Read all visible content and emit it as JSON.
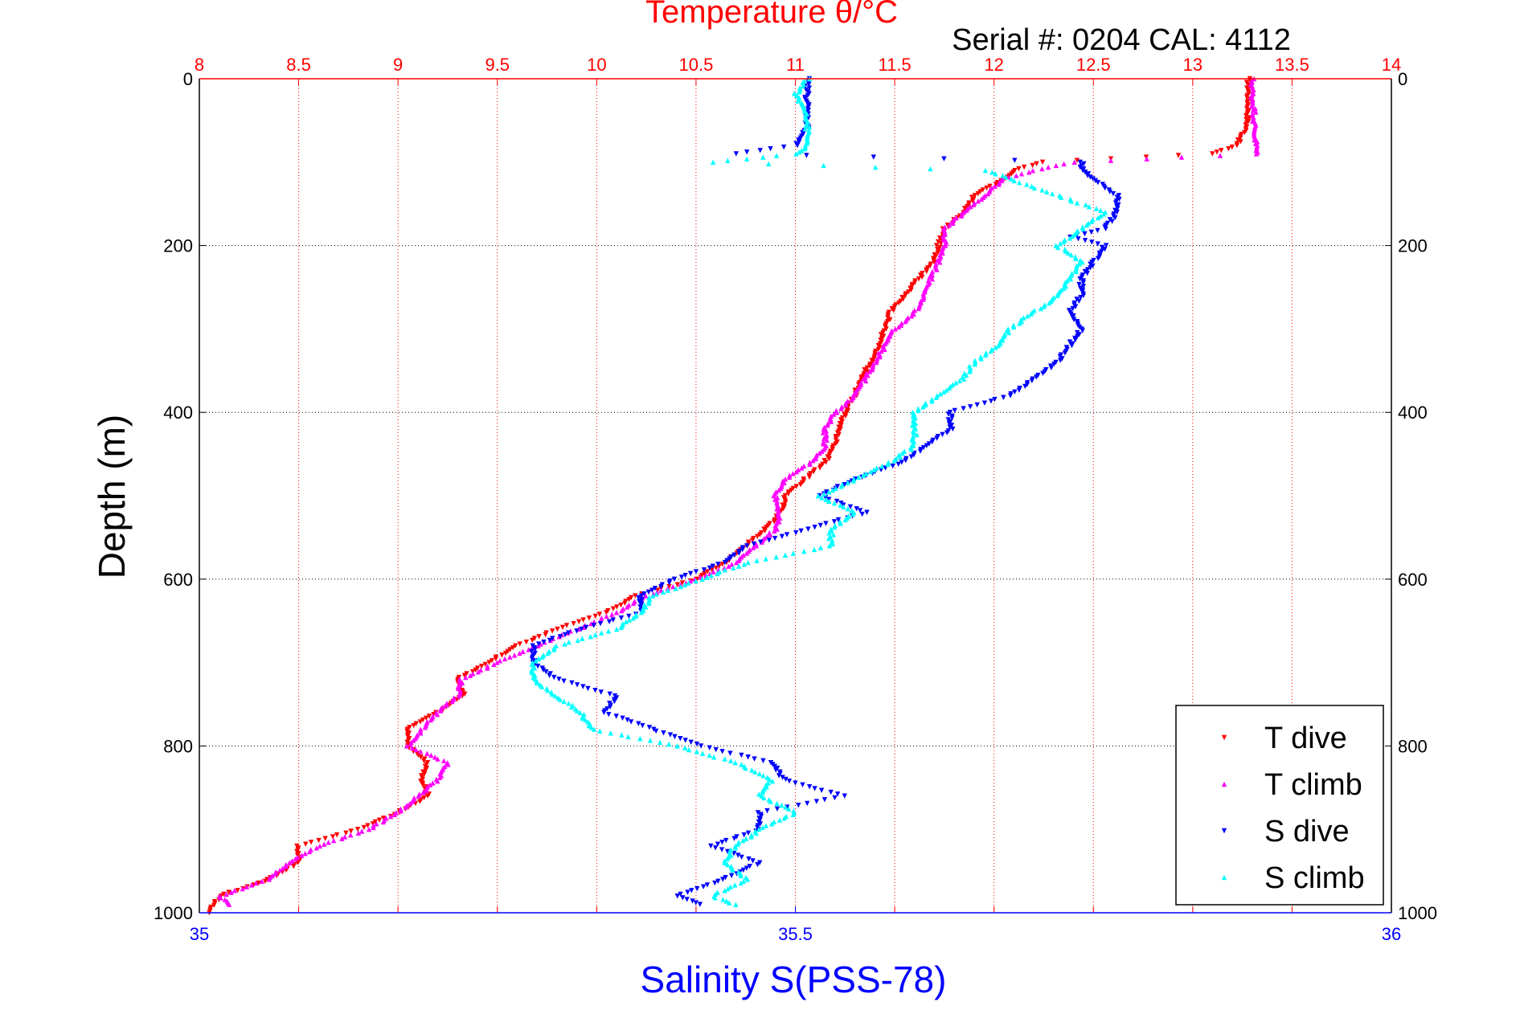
{
  "chart_data": {
    "type": "scatter",
    "title": "Temperature θ/°C",
    "subtitle": "Serial #: 0204  CAL: 4112",
    "xlabel": "Salinity S(PSS-78)",
    "ylabel": "Depth (m)",
    "temp_axis": {
      "label": "Temperature θ/°C",
      "range": [
        8,
        14
      ],
      "ticks": [
        "8",
        "8.5",
        "9",
        "9.5",
        "10",
        "10.5",
        "11",
        "11.5",
        "12",
        "12.5",
        "13",
        "13.5",
        "14"
      ],
      "tick_values": [
        8,
        8.5,
        9,
        9.5,
        10,
        10.5,
        11,
        11.5,
        12,
        12.5,
        13,
        13.5,
        14
      ],
      "color": "#ff0000"
    },
    "sal_axis": {
      "label": "Salinity S(PSS-78)",
      "range": [
        35,
        36
      ],
      "ticks": [
        "35",
        "35.5",
        "36"
      ],
      "tick_values": [
        35,
        35.5,
        36
      ],
      "color": "#0000ff"
    },
    "depth_axis": {
      "label": "Depth (m)",
      "range": [
        0,
        1000
      ],
      "inverted": true,
      "ticks": [
        "0",
        "200",
        "400",
        "600",
        "800",
        "1000"
      ],
      "tick_values": [
        0,
        200,
        400,
        600,
        800,
        1000
      ]
    },
    "grid": true,
    "legend_position": "bottom-right",
    "series": [
      {
        "name": "T dive",
        "axis": "temperature",
        "color": "#ff0000",
        "marker": "triangle-down",
        "depth": [
          0,
          20,
          40,
          60,
          80,
          90,
          100,
          110,
          120,
          140,
          160,
          180,
          200,
          220,
          240,
          260,
          280,
          300,
          320,
          340,
          360,
          380,
          400,
          420,
          440,
          460,
          480,
          500,
          520,
          540,
          560,
          580,
          600,
          620,
          640,
          660,
          680,
          700,
          720,
          740,
          760,
          780,
          800,
          820,
          840,
          860,
          880,
          900,
          920,
          940,
          960,
          980,
          1000
        ],
        "values": [
          13.28,
          13.28,
          13.28,
          13.27,
          13.22,
          13.1,
          12.25,
          12.1,
          12.05,
          11.9,
          11.85,
          11.75,
          11.72,
          11.7,
          11.62,
          11.55,
          11.48,
          11.45,
          11.42,
          11.38,
          11.33,
          11.3,
          11.25,
          11.22,
          11.2,
          11.15,
          11.05,
          10.95,
          10.93,
          10.85,
          10.75,
          10.65,
          10.5,
          10.2,
          10.05,
          9.8,
          9.6,
          9.45,
          9.3,
          9.33,
          9.2,
          9.05,
          9.05,
          9.15,
          9.12,
          9.15,
          9.0,
          8.8,
          8.5,
          8.5,
          8.35,
          8.1,
          8.05
        ]
      },
      {
        "name": "T climb",
        "axis": "temperature",
        "color": "#ff00ff",
        "marker": "triangle-up",
        "depth": [
          0,
          20,
          40,
          60,
          80,
          90,
          100,
          110,
          120,
          140,
          160,
          180,
          200,
          220,
          240,
          260,
          280,
          300,
          320,
          340,
          360,
          380,
          400,
          420,
          440,
          460,
          480,
          500,
          520,
          540,
          560,
          580,
          600,
          620,
          640,
          660,
          680,
          700,
          720,
          740,
          760,
          780,
          800,
          820,
          840,
          860,
          880,
          900,
          920,
          940,
          960,
          980,
          990
        ],
        "values": [
          13.3,
          13.3,
          13.31,
          13.31,
          13.32,
          13.32,
          12.4,
          12.2,
          12.05,
          11.95,
          11.85,
          11.75,
          11.75,
          11.72,
          11.68,
          11.65,
          11.6,
          11.5,
          11.45,
          11.4,
          11.35,
          11.3,
          11.2,
          11.15,
          11.15,
          11.08,
          10.95,
          10.9,
          10.92,
          10.9,
          10.8,
          10.7,
          10.5,
          10.25,
          10.1,
          9.9,
          9.7,
          9.5,
          9.32,
          9.3,
          9.2,
          9.12,
          9.05,
          9.25,
          9.2,
          9.1,
          9.0,
          8.85,
          8.6,
          8.45,
          8.35,
          8.1,
          8.15
        ]
      },
      {
        "name": "S dive",
        "axis": "salinity",
        "color": "#0000ff",
        "marker": "triangle-down",
        "depth": [
          0,
          20,
          40,
          60,
          80,
          90,
          100,
          110,
          120,
          140,
          160,
          180,
          190,
          200,
          220,
          240,
          260,
          280,
          300,
          320,
          340,
          360,
          380,
          400,
          420,
          440,
          460,
          480,
          500,
          520,
          540,
          560,
          580,
          600,
          620,
          640,
          660,
          680,
          700,
          720,
          740,
          760,
          780,
          800,
          820,
          840,
          860,
          880,
          900,
          920,
          940,
          960,
          980,
          990
        ],
        "values": [
          35.51,
          35.51,
          35.51,
          35.51,
          35.5,
          35.45,
          35.74,
          35.74,
          35.75,
          35.77,
          35.77,
          35.76,
          35.73,
          35.76,
          35.75,
          35.74,
          35.74,
          35.73,
          35.74,
          35.73,
          35.72,
          35.7,
          35.68,
          35.63,
          35.63,
          35.61,
          35.59,
          35.55,
          35.52,
          35.56,
          35.51,
          35.46,
          35.44,
          35.4,
          35.37,
          35.37,
          35.32,
          35.28,
          35.28,
          35.3,
          35.35,
          35.34,
          35.38,
          35.42,
          35.48,
          35.49,
          35.54,
          35.47,
          35.47,
          35.43,
          35.47,
          35.44,
          35.4,
          35.42
        ]
      },
      {
        "name": "S climb",
        "axis": "salinity",
        "color": "#00ffff",
        "marker": "triangle-up",
        "depth": [
          0,
          20,
          40,
          60,
          80,
          90,
          100,
          110,
          120,
          140,
          160,
          180,
          200,
          220,
          240,
          260,
          280,
          300,
          320,
          340,
          360,
          380,
          400,
          420,
          440,
          460,
          480,
          500,
          520,
          540,
          560,
          580,
          600,
          620,
          640,
          660,
          680,
          700,
          720,
          740,
          760,
          780,
          800,
          820,
          840,
          860,
          880,
          900,
          920,
          940,
          960,
          980,
          990
        ],
        "values": [
          35.51,
          35.5,
          35.51,
          35.51,
          35.51,
          35.5,
          35.43,
          35.66,
          35.68,
          35.72,
          35.76,
          35.74,
          35.72,
          35.74,
          35.73,
          35.72,
          35.7,
          35.68,
          35.67,
          35.65,
          35.64,
          35.62,
          35.6,
          35.6,
          35.6,
          35.58,
          35.55,
          35.52,
          35.55,
          35.53,
          35.53,
          35.46,
          35.42,
          35.38,
          35.37,
          35.35,
          35.3,
          35.28,
          35.28,
          35.3,
          35.32,
          35.33,
          35.4,
          35.45,
          35.48,
          35.47,
          35.5,
          35.47,
          35.45,
          35.44,
          35.46,
          35.43,
          35.45
        ]
      }
    ]
  }
}
